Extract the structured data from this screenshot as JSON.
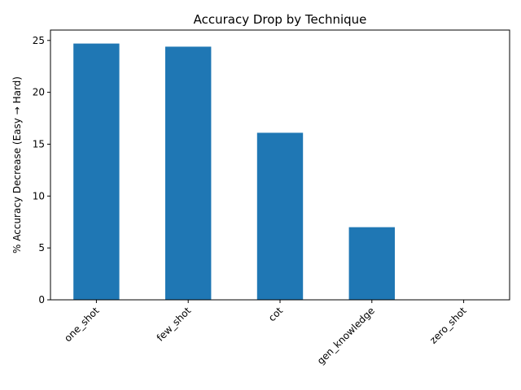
{
  "chart_data": {
    "type": "bar",
    "title": "Accuracy Drop by Technique",
    "xlabel": "",
    "ylabel": "% Accuracy Decrease (Easy → Hard)",
    "categories": [
      "one_shot",
      "few_shot",
      "cot",
      "gen_knowledge",
      "zero_shot"
    ],
    "values": [
      24.7,
      24.4,
      16.1,
      7.0,
      0.0
    ],
    "ylim": [
      0,
      26
    ],
    "yticks": [
      0,
      5,
      10,
      15,
      20,
      25
    ],
    "bar_color": "#1f77b4",
    "grid": false,
    "legend": "none"
  }
}
